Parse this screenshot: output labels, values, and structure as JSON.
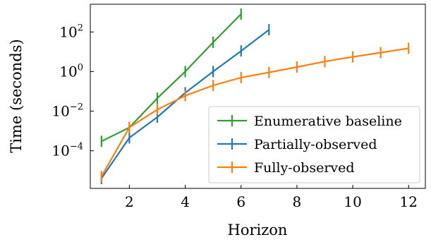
{
  "chart_data": {
    "type": "line",
    "xlabel": "Horizon",
    "ylabel": "Time (seconds)",
    "xlim": [
      0.6,
      12.6
    ],
    "ylim_log10": [
      -5.9,
      3.4
    ],
    "y_scale": "log",
    "grid": false,
    "legend_position": "center-right",
    "x_ticks": [
      2,
      4,
      6,
      8,
      10,
      12
    ],
    "y_ticks": [
      {
        "base": "10",
        "exp": "2",
        "value": 100
      },
      {
        "base": "10",
        "exp": "0",
        "value": 1
      },
      {
        "base": "10",
        "exp": "−2",
        "value": 0.01
      },
      {
        "base": "10",
        "exp": "−4",
        "value": 0.0001
      }
    ],
    "series": [
      {
        "name": "Enumerative baseline",
        "color": "#2ca02c",
        "x": [
          1,
          2,
          3,
          4,
          5,
          6
        ],
        "y": [
          0.0003,
          0.0015,
          0.045,
          1.0,
          30,
          800
        ]
      },
      {
        "name": "Partially-observed",
        "color": "#1f77b4",
        "x": [
          1,
          2,
          3,
          4,
          5,
          6,
          7
        ],
        "y": [
          4e-06,
          0.00045,
          0.005,
          0.085,
          1.0,
          11,
          130
        ]
      },
      {
        "name": "Fully-observed",
        "color": "#ff7f0e",
        "x": [
          1,
          2,
          3,
          4,
          5,
          6,
          7,
          8,
          9,
          10,
          11,
          12
        ],
        "y": [
          5e-06,
          0.0015,
          0.012,
          0.06,
          0.2,
          0.5,
          0.9,
          1.7,
          3.2,
          5.5,
          9,
          15
        ]
      }
    ]
  }
}
